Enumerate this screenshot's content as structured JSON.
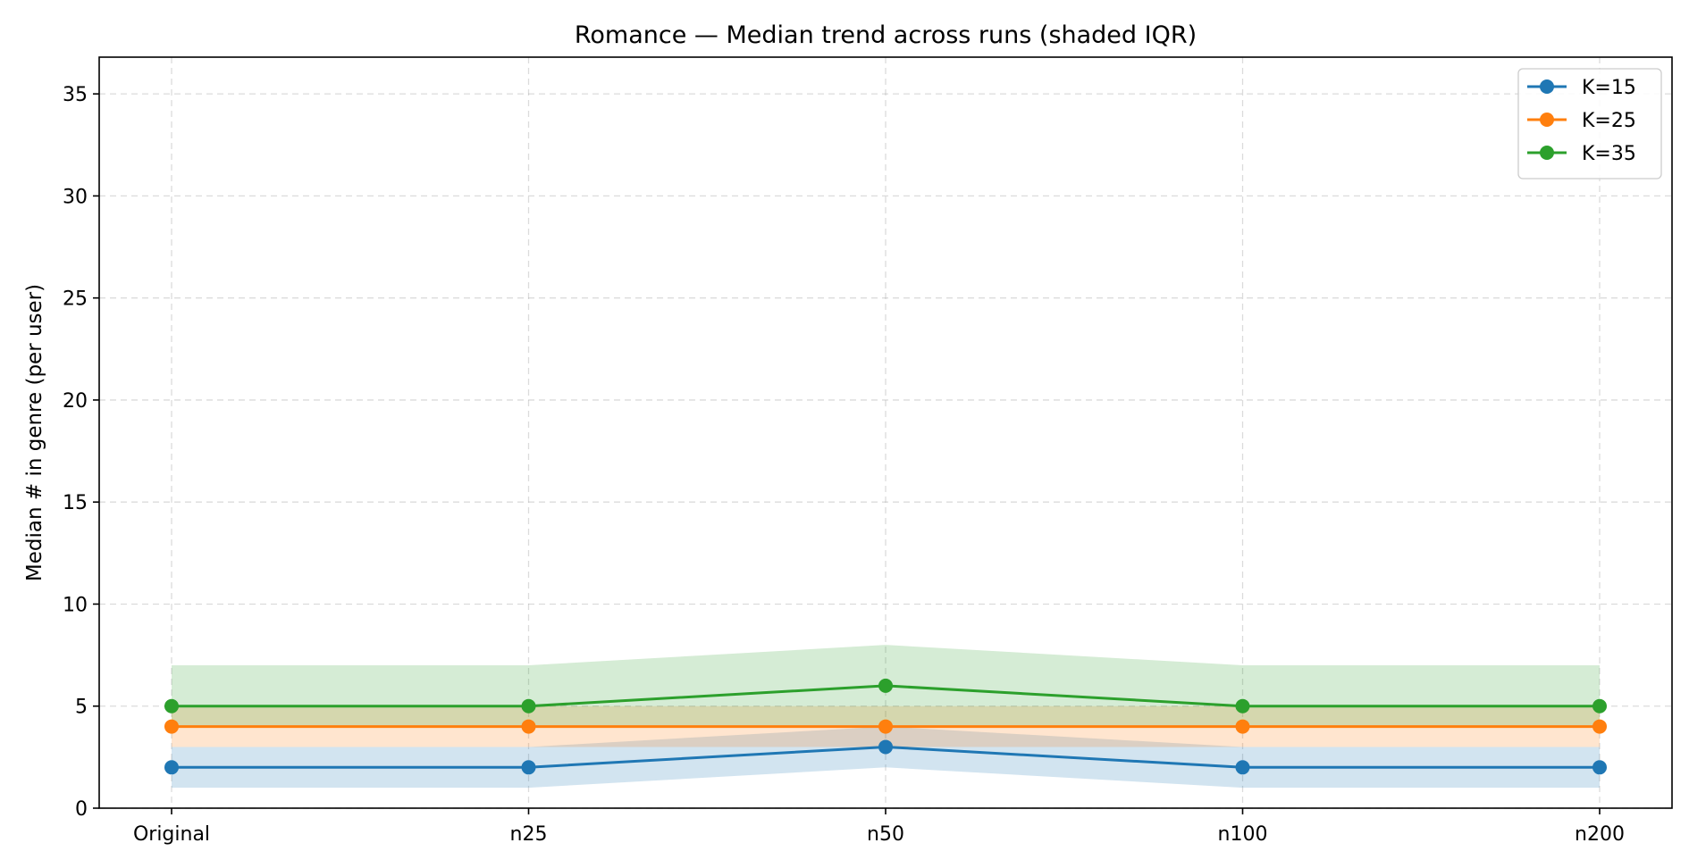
{
  "chart_data": {
    "type": "line",
    "title": "Romance — Median trend across runs (shaded IQR)",
    "xlabel": "",
    "ylabel": "Median # in genre (per user)",
    "categories": [
      "Original",
      "n25",
      "n50",
      "n100",
      "n200"
    ],
    "ylim": [
      0,
      36.8
    ],
    "yticks": [
      0,
      5,
      10,
      15,
      20,
      25,
      30,
      35
    ],
    "grid": true,
    "legend_position": "top-right",
    "series": [
      {
        "name": "K=15",
        "color": "#1f77b4",
        "values": [
          2,
          2,
          3,
          2,
          2
        ],
        "iqr_low": [
          1,
          1,
          2,
          1,
          1
        ],
        "iqr_high": [
          3,
          3,
          4,
          3,
          3
        ]
      },
      {
        "name": "K=25",
        "color": "#ff7f0e",
        "values": [
          4,
          4,
          4,
          4,
          4
        ],
        "iqr_low": [
          3,
          3,
          3,
          3,
          3
        ],
        "iqr_high": [
          5,
          5,
          5,
          5,
          5
        ]
      },
      {
        "name": "K=35",
        "color": "#2ca02c",
        "values": [
          5,
          5,
          6,
          5,
          5
        ],
        "iqr_low": [
          4,
          4,
          4,
          4,
          4
        ],
        "iqr_high": [
          7,
          7,
          8,
          7,
          7
        ]
      }
    ]
  }
}
